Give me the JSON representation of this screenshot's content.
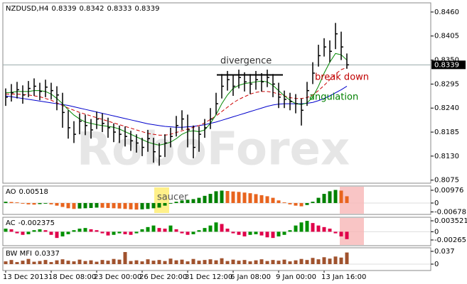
{
  "chart_data": [
    {
      "type": "ohlc",
      "title": {
        "symbol": "NZDUSD,H4",
        "values": [
          0.8339,
          0.8342,
          0.8333,
          0.8339
        ]
      },
      "watermark": "RoboForex",
      "categories": [
        "13 Dec 2013",
        null,
        null,
        null,
        null,
        null,
        null,
        null,
        "18 Dec 08:00",
        null,
        null,
        null,
        null,
        null,
        null,
        null,
        "23 Dec 00:00",
        null,
        null,
        null,
        null,
        null,
        null,
        null,
        "26 Dec 20:00",
        null,
        null,
        null,
        null,
        null,
        null,
        null,
        "31 Dec 12:00",
        null,
        null,
        null,
        null,
        null,
        null,
        null,
        "6 Jan 08:00",
        null,
        null,
        null,
        null,
        null,
        null,
        null,
        "9 Jan 00:00",
        null,
        null,
        null,
        null,
        null,
        null,
        null,
        "13 Jan 16:00",
        null,
        null,
        null,
        null
      ],
      "high": [
        0.8285,
        0.8295,
        0.83,
        0.8292,
        0.8302,
        0.8308,
        0.8298,
        0.8305,
        0.8298,
        0.829,
        0.8275,
        0.8235,
        0.821,
        0.8228,
        0.8225,
        0.8215,
        0.8232,
        0.8228,
        0.8218,
        0.8205,
        0.82,
        0.8198,
        0.8188,
        0.818,
        0.8172,
        0.819,
        0.8172,
        0.816,
        0.818,
        0.8195,
        0.8222,
        0.8235,
        0.8225,
        0.82,
        0.8198,
        0.8215,
        0.824,
        0.8275,
        0.8318,
        0.8325,
        0.8315,
        0.8328,
        0.8322,
        0.8318,
        0.8325,
        0.832,
        0.8328,
        0.8318,
        0.8298,
        0.828,
        0.8275,
        0.8272,
        0.8262,
        0.83,
        0.8345,
        0.8385,
        0.84,
        0.8395,
        0.8435,
        0.8415,
        0.8365
      ],
      "low": [
        0.8245,
        0.8255,
        0.8262,
        0.825,
        0.8265,
        0.8268,
        0.8258,
        0.8265,
        0.826,
        0.8235,
        0.8195,
        0.817,
        0.816,
        0.818,
        0.8178,
        0.817,
        0.8192,
        0.8185,
        0.8172,
        0.8162,
        0.816,
        0.8152,
        0.8142,
        0.8138,
        0.813,
        0.814,
        0.8115,
        0.8108,
        0.8128,
        0.815,
        0.8175,
        0.819,
        0.815,
        0.8125,
        0.814,
        0.8172,
        0.8192,
        0.8225,
        0.8262,
        0.828,
        0.8268,
        0.8285,
        0.8278,
        0.8272,
        0.8282,
        0.8278,
        0.8288,
        0.8265,
        0.824,
        0.824,
        0.8235,
        0.8228,
        0.82,
        0.8245,
        0.8295,
        0.8335,
        0.8358,
        0.8345,
        0.8375,
        0.835,
        0.833
      ],
      "close": [
        0.8265,
        0.8275,
        0.8282,
        0.827,
        0.8285,
        0.829,
        0.8278,
        0.8288,
        0.828,
        0.827,
        0.823,
        0.8195,
        0.818,
        0.821,
        0.82,
        0.819,
        0.8215,
        0.8205,
        0.8195,
        0.8185,
        0.818,
        0.8175,
        0.8165,
        0.816,
        0.815,
        0.817,
        0.814,
        0.813,
        0.816,
        0.8175,
        0.82,
        0.8215,
        0.819,
        0.815,
        0.818,
        0.8195,
        0.8215,
        0.825,
        0.829,
        0.8305,
        0.829,
        0.831,
        0.83,
        0.8295,
        0.8305,
        0.83,
        0.831,
        0.8295,
        0.8265,
        0.826,
        0.8255,
        0.825,
        0.8235,
        0.828,
        0.832,
        0.836,
        0.838,
        0.837,
        0.841,
        0.838,
        0.8339
      ],
      "color": "#000000",
      "series": [
        {
          "color": "#0000cc",
          "values": [
            0.8268,
            0.8266,
            0.8264,
            0.8262,
            0.826,
            0.8258,
            0.8256,
            0.8254,
            0.8252,
            0.825,
            0.8248,
            0.8246,
            0.8243,
            0.824,
            0.8237,
            0.8234,
            0.8231,
            0.8228,
            0.8225,
            0.8222,
            0.8219,
            0.8216,
            0.8213,
            0.821,
            0.8207,
            0.8204,
            0.8202,
            0.82,
            0.8198,
            0.8197,
            0.8196,
            0.8196,
            0.8197,
            0.8198,
            0.82,
            0.8202,
            0.8205,
            0.8208,
            0.8212,
            0.8216,
            0.822,
            0.8224,
            0.8228,
            0.8232,
            0.8236,
            0.824,
            0.8244,
            0.8247,
            0.8249,
            0.825,
            0.825,
            0.825,
            0.825,
            0.8251,
            0.8253,
            0.8257,
            0.8262,
            0.8268,
            0.8275,
            0.8282,
            0.829
          ]
        },
        {
          "color": "#cc0000",
          "dashed": true,
          "values": [
            0.8272,
            0.8272,
            0.8272,
            0.8271,
            0.827,
            0.8268,
            0.8266,
            0.8262,
            0.8258,
            0.8252,
            0.8246,
            0.824,
            0.8235,
            0.823,
            0.8226,
            0.8222,
            0.8218,
            0.8214,
            0.821,
            0.8206,
            0.8202,
            0.8198,
            0.8194,
            0.819,
            0.8186,
            0.8182,
            0.818,
            0.8178,
            0.8178,
            0.818,
            0.8184,
            0.8188,
            0.8192,
            0.8196,
            0.82,
            0.8206,
            0.8214,
            0.8222,
            0.8232,
            0.8242,
            0.8252,
            0.826,
            0.8266,
            0.8272,
            0.8276,
            0.8278,
            0.8278,
            0.8276,
            0.8272,
            0.8268,
            0.8264,
            0.8262,
            0.8262,
            0.8264,
            0.827,
            0.828,
            0.8292,
            0.8305,
            0.8318,
            0.8328,
            0.8333
          ]
        },
        {
          "color": "#008800",
          "values": [
            0.8275,
            0.8276,
            0.8278,
            0.8278,
            0.8278,
            0.828,
            0.828,
            0.8278,
            0.8272,
            0.8262,
            0.825,
            0.8236,
            0.8224,
            0.8215,
            0.8208,
            0.8205,
            0.8202,
            0.82,
            0.8198,
            0.8196,
            0.8192,
            0.8186,
            0.818,
            0.8174,
            0.8168,
            0.8162,
            0.8158,
            0.8155,
            0.8158,
            0.8162,
            0.817,
            0.818,
            0.8186,
            0.8188,
            0.8186,
            0.819,
            0.8205,
            0.8225,
            0.825,
            0.827,
            0.8285,
            0.8292,
            0.8296,
            0.8298,
            0.83,
            0.8302,
            0.83,
            0.8292,
            0.828,
            0.8268,
            0.8258,
            0.825,
            0.8248,
            0.8252,
            0.8265,
            0.829,
            0.832,
            0.8345,
            0.8365,
            0.8362,
            0.835
          ]
        }
      ],
      "last_price": 0.8339,
      "annotations": [
        "divergence",
        "break down",
        "angulation"
      ],
      "ylim": [
        0.8068,
        0.8481
      ],
      "yticks": [
        {
          "value": 0.846,
          "label": "0.8460"
        },
        0.8405,
        {
          "value": 0.835,
          "label": "0.8350"
        },
        0.8295,
        {
          "value": 0.824,
          "label": "0.8240"
        },
        0.8185,
        {
          "value": 0.813,
          "label": "0.8130"
        },
        0.8075
      ]
    },
    {
      "type": "bar",
      "name": "AO",
      "current": 0.00518,
      "annotation": "saucer",
      "colors": {
        "up": "#008000",
        "down": "#e8641e"
      },
      "values": [
        0.001,
        0.0008,
        0.0005,
        -0.0005,
        -0.001,
        -0.0012,
        -0.0008,
        -0.0005,
        -0.001,
        -0.002,
        -0.003,
        -0.004,
        -0.0045,
        -0.0042,
        -0.004,
        -0.0038,
        -0.0035,
        -0.0036,
        -0.0038,
        -0.004,
        -0.0042,
        -0.0045,
        -0.0048,
        -0.005,
        -0.0048,
        -0.0045,
        -0.004,
        -0.0035,
        -0.002,
        -0.0005,
        0.001,
        0.002,
        0.0025,
        0.003,
        0.004,
        0.0055,
        0.007,
        0.009,
        0.0095,
        0.0092,
        0.0088,
        0.0085,
        0.008,
        0.0075,
        0.0068,
        0.006,
        0.0052,
        0.004,
        0.002,
        0.0005,
        -0.001,
        -0.002,
        -0.0025,
        -0.0015,
        0.001,
        0.004,
        0.007,
        0.009,
        0.01,
        0.0095,
        0.00518
      ],
      "ylim": [
        -0.0087,
        0.013
      ],
      "yticks": [
        0.00976,
        0,
        -0.00678
      ]
    },
    {
      "type": "bar",
      "name": "AC",
      "current": -0.002375,
      "colors": {
        "up": "#009000",
        "down": "#e0004a"
      },
      "values": [
        0.001,
        0.0008,
        -0.0005,
        -0.001,
        -0.0008,
        0.0005,
        0.0008,
        0.0005,
        -0.001,
        -0.002,
        -0.0015,
        -0.0008,
        0.0005,
        0.001,
        0.0012,
        0.0008,
        0.0005,
        -0.0005,
        -0.0012,
        -0.001,
        -0.0005,
        -0.0008,
        -0.001,
        -0.0005,
        0.0008,
        0.0015,
        0.002,
        0.0012,
        0.001,
        0.002,
        0.0008,
        -0.0005,
        -0.001,
        -0.0008,
        0.0005,
        0.0012,
        0.002,
        0.003,
        0.0025,
        0.001,
        -0.0005,
        -0.001,
        -0.0015,
        -0.001,
        -0.0008,
        -0.0012,
        -0.0018,
        -0.002,
        -0.0015,
        -0.001,
        0.0005,
        0.002,
        0.003,
        0.0035,
        0.0028,
        0.002,
        0.0015,
        0.001,
        -0.0005,
        -0.0015,
        -0.002375
      ],
      "ylim": [
        -0.00448,
        0.00466
      ],
      "yticks": [
        0.003521,
        0,
        -0.00265
      ]
    },
    {
      "type": "bar",
      "name": "BW MFI",
      "current": 0.0337,
      "color": "#a0522d",
      "values": [
        0.008,
        0.012,
        0.006,
        0.01,
        0.015,
        0.007,
        0.009,
        0.012,
        0.006,
        0.011,
        0.014,
        0.01,
        0.008,
        0.013,
        0.009,
        0.011,
        0.007,
        0.012,
        0.01,
        0.015,
        0.013,
        0.035,
        0.009,
        0.011,
        0.008,
        0.014,
        0.01,
        0.012,
        0.009,
        0.016,
        0.011,
        0.013,
        0.008,
        0.015,
        0.01,
        0.012,
        0.014,
        0.011,
        0.017,
        0.009,
        0.013,
        0.01,
        0.012,
        0.008,
        0.011,
        0.014,
        0.009,
        0.012,
        0.01,
        0.013,
        0.008,
        0.011,
        0.015,
        0.012,
        0.018,
        0.014,
        0.02,
        0.016,
        0.022,
        0.019,
        0.0337
      ],
      "ylim": [
        -0.0185,
        0.0473
      ],
      "yticks": [
        0.037,
        0
      ]
    }
  ]
}
